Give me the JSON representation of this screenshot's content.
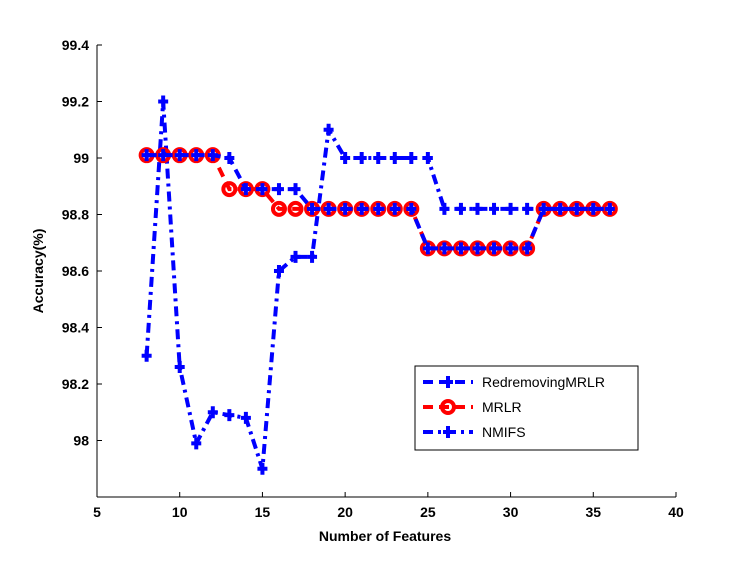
{
  "chart_data": {
    "type": "line",
    "title": "",
    "xlabel": "Number of Features",
    "ylabel": "Accuracy(%)",
    "xlim": [
      5,
      40
    ],
    "ylim": [
      97.8,
      99.4
    ],
    "xticks": [
      5,
      10,
      15,
      20,
      25,
      30,
      35,
      40
    ],
    "yticks": [
      98,
      98.2,
      98.4,
      98.6,
      98.8,
      99,
      99.2,
      99.4
    ],
    "ytick_labels": [
      "98",
      "98.2",
      "98.4",
      "98.6",
      "98.8",
      "99",
      "99.2",
      "99.4"
    ],
    "grid": false,
    "legend_position": "lower-right",
    "x": [
      8,
      9,
      10,
      11,
      12,
      13,
      14,
      15,
      16,
      17,
      18,
      19,
      20,
      21,
      22,
      23,
      24,
      25,
      26,
      27,
      28,
      29,
      30,
      31,
      32,
      33,
      34,
      35,
      36
    ],
    "series": [
      {
        "name": "RedremovingMRLR",
        "color": "#0000ff",
        "style": "dashed",
        "marker": "plus",
        "values": [
          99.01,
          99.01,
          99.01,
          99.01,
          99.01,
          99.0,
          98.89,
          98.89,
          98.89,
          98.89,
          98.82,
          98.82,
          98.82,
          98.82,
          98.82,
          98.82,
          98.82,
          98.68,
          98.68,
          98.68,
          98.68,
          98.68,
          98.68,
          98.68,
          98.82,
          98.82,
          98.82,
          98.82,
          98.82
        ]
      },
      {
        "name": "MRLR",
        "color": "#ff0000",
        "style": "dashed",
        "marker": "circle",
        "values": [
          99.01,
          99.01,
          99.01,
          99.01,
          99.01,
          98.89,
          98.89,
          98.89,
          98.82,
          98.82,
          98.82,
          98.82,
          98.82,
          98.82,
          98.82,
          98.82,
          98.82,
          98.68,
          98.68,
          98.68,
          98.68,
          98.68,
          98.68,
          98.68,
          98.82,
          98.82,
          98.82,
          98.82,
          98.82
        ]
      },
      {
        "name": "NMIFS",
        "color": "#0000ff",
        "style": "dashdot",
        "marker": "plus",
        "values": [
          98.3,
          99.2,
          98.26,
          97.99,
          98.1,
          98.09,
          98.08,
          97.9,
          98.6,
          98.65,
          98.65,
          99.1,
          99.0,
          99.0,
          99.0,
          99.0,
          99.0,
          99.0,
          98.82,
          98.82,
          98.82,
          98.82,
          98.82,
          98.82,
          98.82,
          98.82,
          98.82,
          98.82,
          98.82
        ]
      }
    ]
  }
}
